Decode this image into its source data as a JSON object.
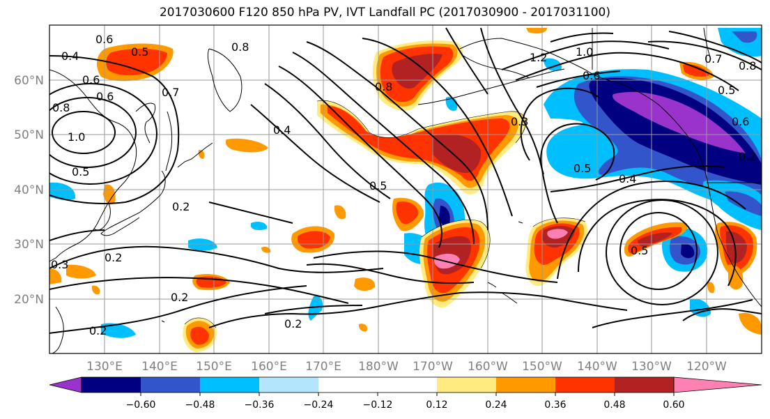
{
  "title": "2017030600 F120 850 hPa PV, IVT Landfall PC (2017030900 - 2017031100)",
  "map": {
    "lat_labels": [
      "60°N",
      "50°N",
      "40°N",
      "30°N",
      "20°N"
    ],
    "lon_labels": [
      "130°E",
      "140°E",
      "150°E",
      "160°E",
      "170°E",
      "180°W",
      "170°W",
      "160°W",
      "150°W",
      "140°W",
      "130°W",
      "120°W"
    ],
    "contour_labels": [
      "0.6",
      "0.4",
      "0.5",
      "0.8",
      "0.6",
      "1.0",
      "0.5",
      "0.7",
      "0.8",
      "0.6",
      "0.4",
      "0.5",
      "0.2",
      "0.3",
      "0.2",
      "0.2",
      "0.2",
      "0.2",
      "0.8",
      "0.3",
      "1.2",
      "1.0",
      "0.6",
      "0.5",
      "0.4",
      "0.5",
      "0.7",
      "0.8",
      "0.5",
      "0.6",
      "0.2"
    ]
  },
  "colorbar": {
    "colors": [
      "#9933cc",
      "#000080",
      "#3355cc",
      "#00bfff",
      "#b3e5ff",
      "#ffffff",
      "#ffeb80",
      "#ff9900",
      "#ff3300",
      "#b22222",
      "#ff80b3"
    ],
    "tick_labels": [
      "−0.60",
      "−0.48",
      "−0.36",
      "−0.24",
      "−0.12",
      "0.12",
      "0.24",
      "0.36",
      "0.48",
      "0.60"
    ]
  },
  "colors": {
    "purple": "#9933cc",
    "navy": "#000080",
    "blue": "#3355cc",
    "sky": "#00bfff",
    "pale_blue": "#b3e5ff",
    "yellow": "#ffeb80",
    "orange": "#ff9900",
    "red_orange": "#ff3300",
    "dark_red": "#b22222",
    "pink": "#ff80b3"
  }
}
